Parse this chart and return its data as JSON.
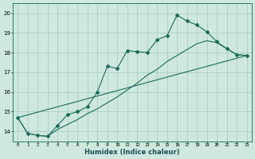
{
  "bg_color": "#cfe8df",
  "grid_color": "#a8cfc0",
  "line_color": "#1a6b5a",
  "xlabel": "Humidex (Indice chaleur)",
  "xlim": [
    -0.5,
    23.5
  ],
  "ylim": [
    13.5,
    20.5
  ],
  "yticks": [
    14,
    15,
    16,
    17,
    18,
    19,
    20
  ],
  "xticks": [
    0,
    1,
    2,
    3,
    4,
    5,
    6,
    7,
    8,
    9,
    10,
    11,
    12,
    13,
    14,
    15,
    16,
    17,
    18,
    19,
    20,
    21,
    22,
    23
  ],
  "line1_x": [
    0,
    1,
    2,
    3,
    4,
    5,
    6,
    7,
    8,
    9,
    10,
    11,
    12,
    13,
    14,
    15,
    16,
    17,
    18,
    19,
    20,
    21,
    22,
    23
  ],
  "line1_y": [
    14.7,
    13.9,
    13.8,
    13.75,
    14.3,
    14.85,
    15.0,
    15.25,
    16.0,
    17.3,
    17.2,
    18.1,
    18.05,
    18.0,
    18.65,
    18.85,
    19.9,
    19.6,
    19.4,
    19.05,
    18.55,
    18.2,
    17.9,
    17.85
  ],
  "line2_x": [
    0,
    1,
    2,
    3,
    4,
    5,
    6,
    7,
    8,
    9,
    10,
    11,
    12,
    13,
    14,
    15,
    16,
    17,
    18,
    19,
    20,
    21,
    22,
    23
  ],
  "line2_y": [
    14.7,
    13.9,
    13.8,
    13.75,
    14.1,
    14.35,
    14.6,
    14.9,
    15.15,
    15.45,
    15.75,
    16.1,
    16.45,
    16.85,
    17.15,
    17.55,
    17.85,
    18.15,
    18.45,
    18.6,
    18.5,
    18.2,
    17.9,
    17.85
  ],
  "line3_x": [
    0,
    23
  ],
  "line3_y": [
    14.7,
    17.85
  ]
}
